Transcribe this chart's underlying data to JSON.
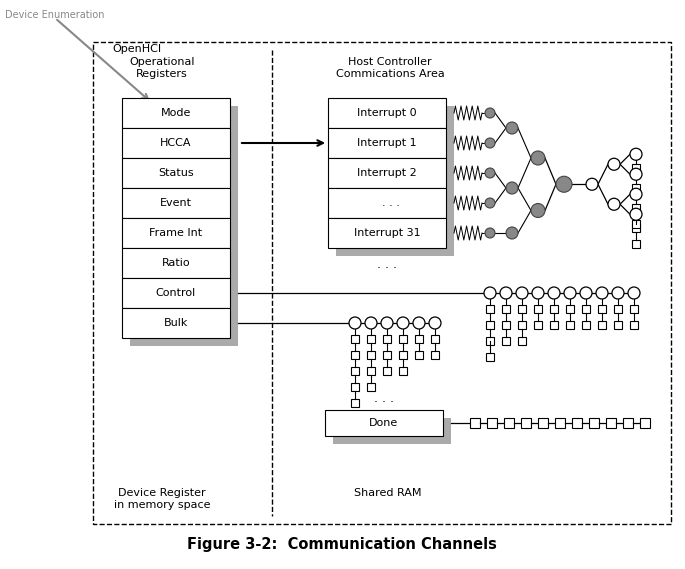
{
  "title": "Figure 3-2:  Communication Channels",
  "background_color": "#ffffff",
  "openhci_label": "OpenHCI",
  "device_enum_label": "Device Enumeration",
  "op_reg_label": "Operational\nRegisters",
  "hc_comm_label": "Host Controller\nCommications Area",
  "dev_reg_label": "Device Register\nin memory space",
  "shared_ram_label": "Shared RAM",
  "reg_rows": [
    "Mode",
    "HCCA",
    "Status",
    "Event",
    "Frame Int",
    "Ratio",
    "Control",
    "Bulk"
  ],
  "interrupt_rows": [
    "Interrupt 0",
    "Interrupt 1",
    "Interrupt 2",
    "  . . .",
    "Interrupt 31"
  ]
}
